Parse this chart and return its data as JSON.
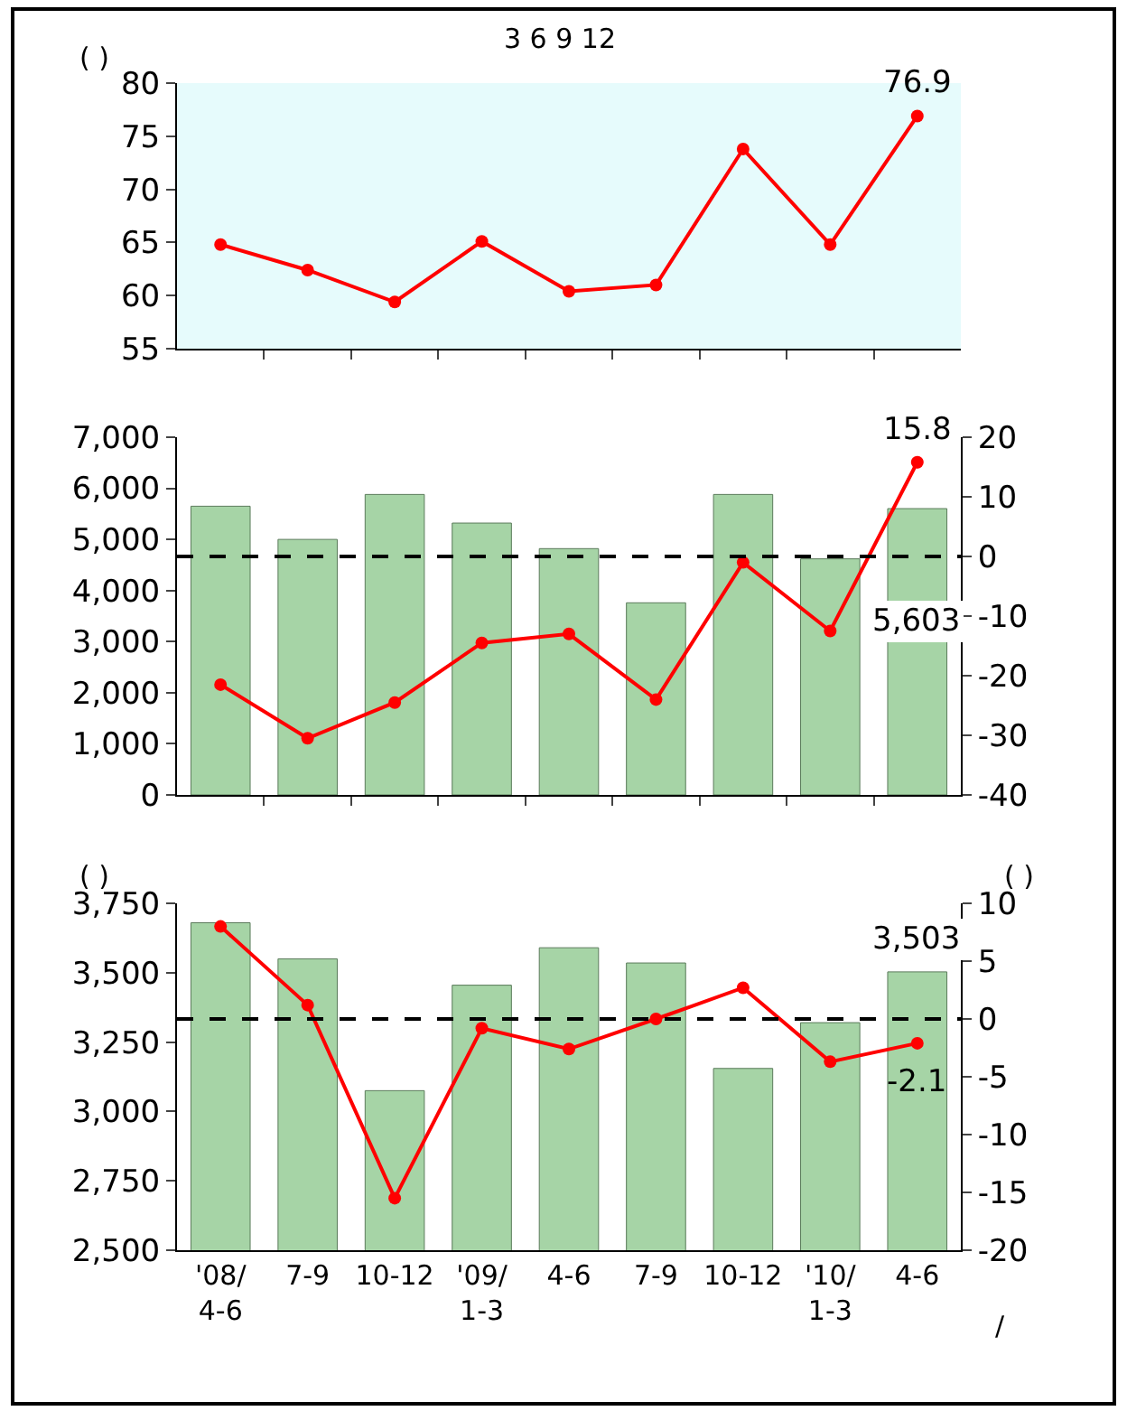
{
  "chart_data": [
    {
      "type": "line",
      "title": "3 6 9 12",
      "ylabel": "( )",
      "categories": [
        null,
        null,
        null,
        null,
        null,
        null,
        null,
        null,
        null
      ],
      "tick_labels": "y",
      "ylim": [
        55,
        80
      ],
      "yticks": [
        55,
        60,
        65,
        70,
        75,
        80
      ],
      "series": [
        {
          "color": "#ff0000",
          "marker": "circle",
          "values": [
            64.8,
            62.4,
            59.4,
            65.1,
            60.4,
            61.0,
            73.8,
            64.8,
            76.9
          ],
          "value_labels": [
            null,
            null,
            null,
            null,
            null,
            null,
            null,
            null,
            "76.9"
          ]
        }
      ]
    },
    {
      "type": "bar",
      "categories": [
        null,
        null,
        null,
        null,
        null,
        null,
        null,
        null,
        null
      ],
      "tick_labels": "y",
      "ylim": [
        0,
        7000
      ],
      "yticks": [
        0,
        {
          "value": 1000,
          "label": "1,000"
        },
        {
          "value": 2000,
          "label": "2,000"
        },
        {
          "value": 3000,
          "label": "3,000"
        },
        {
          "value": 4000,
          "label": "4,000"
        },
        {
          "value": 5000,
          "label": "5,000"
        },
        {
          "value": 6000,
          "label": "6,000"
        },
        {
          "value": 7000,
          "label": "7,000"
        }
      ],
      "y2lim": [
        -40,
        20
      ],
      "y2ticks": [
        -40,
        -30,
        -20,
        -10,
        0,
        10,
        20
      ],
      "ref_lines": [
        {
          "axis": "y2",
          "value": 0,
          "line_style": "dashed",
          "color": "#000000"
        }
      ],
      "series": [
        {
          "color": "#a6d4a6",
          "values": [
            5650,
            5000,
            5880,
            5320,
            4820,
            3760,
            5880,
            4620,
            5603
          ],
          "value_labels": [
            null,
            null,
            null,
            null,
            null,
            null,
            null,
            null,
            "5,603"
          ]
        },
        {
          "type": "line",
          "axis": "y2",
          "color": "#ff0000",
          "marker": "circle",
          "values": [
            -21.5,
            -30.5,
            -24.5,
            -14.5,
            -13,
            -24,
            -1,
            -12.5,
            15.8
          ],
          "value_labels": [
            null,
            null,
            null,
            null,
            null,
            null,
            null,
            null,
            "15.8"
          ]
        }
      ]
    },
    {
      "type": "bar",
      "ylabel": "( )",
      "y2label": "( )",
      "categories": [
        "'08/\n4-6",
        "7-9",
        "10-12",
        "'09/\n1-3",
        "4-6",
        "7-9",
        "10-12",
        "'10/\n1-3",
        "4-6"
      ],
      "ylim": [
        2500,
        3750
      ],
      "yticks": [
        {
          "value": 2500,
          "label": "2,500"
        },
        {
          "value": 2750,
          "label": "2,750"
        },
        {
          "value": 3000,
          "label": "3,000"
        },
        {
          "value": 3250,
          "label": "3,250"
        },
        {
          "value": 3500,
          "label": "3,500"
        },
        {
          "value": 3750,
          "label": "3,750"
        }
      ],
      "y2lim": [
        -20,
        10
      ],
      "y2ticks": [
        -20,
        -15,
        -10,
        -5,
        0,
        5,
        10
      ],
      "ref_lines": [
        {
          "axis": "y2",
          "value": 0,
          "line_style": "dashed",
          "color": "#000000"
        }
      ],
      "annotations": [
        "/"
      ],
      "series": [
        {
          "color": "#a6d4a6",
          "values": [
            3680,
            3550,
            3075,
            3455,
            3590,
            3535,
            3155,
            3320,
            3503
          ],
          "value_labels": [
            null,
            null,
            null,
            null,
            null,
            null,
            null,
            null,
            "3,503"
          ]
        },
        {
          "type": "line",
          "axis": "y2",
          "color": "#ff0000",
          "marker": "circle",
          "values": [
            8,
            1.2,
            -15.5,
            -0.8,
            -2.6,
            0,
            2.7,
            -3.7,
            -2.1
          ],
          "value_labels": [
            null,
            null,
            null,
            null,
            null,
            null,
            null,
            null,
            "-2.1"
          ]
        }
      ]
    }
  ]
}
